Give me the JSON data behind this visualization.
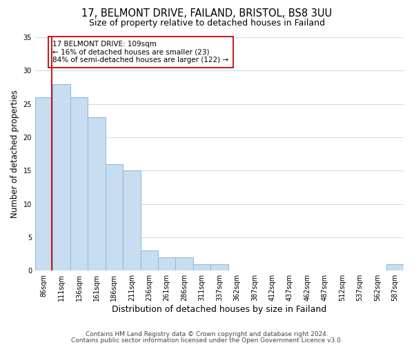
{
  "title": "17, BELMONT DRIVE, FAILAND, BRISTOL, BS8 3UU",
  "subtitle": "Size of property relative to detached houses in Failand",
  "xlabel": "Distribution of detached houses by size in Failand",
  "ylabel": "Number of detached properties",
  "bin_labels": [
    "86sqm",
    "111sqm",
    "136sqm",
    "161sqm",
    "186sqm",
    "211sqm",
    "236sqm",
    "261sqm",
    "286sqm",
    "311sqm",
    "337sqm",
    "362sqm",
    "387sqm",
    "412sqm",
    "437sqm",
    "462sqm",
    "487sqm",
    "512sqm",
    "537sqm",
    "562sqm",
    "587sqm"
  ],
  "bar_values": [
    26,
    28,
    26,
    23,
    16,
    15,
    3,
    2,
    2,
    1,
    1,
    0,
    0,
    0,
    0,
    0,
    0,
    0,
    0,
    0,
    1
  ],
  "bar_color": "#c8ddf0",
  "bar_edge_color": "#8ab8d8",
  "reference_line_color": "#cc0000",
  "reference_line_x": 0.94,
  "ylim": [
    0,
    35
  ],
  "yticks": [
    0,
    5,
    10,
    15,
    20,
    25,
    30,
    35
  ],
  "annotation_text": "17 BELMONT DRIVE: 109sqm\n← 16% of detached houses are smaller (23)\n84% of semi-detached houses are larger (122) →",
  "annotation_box_edge_color": "#cc0000",
  "footer_line1": "Contains HM Land Registry data © Crown copyright and database right 2024.",
  "footer_line2": "Contains public sector information licensed under the Open Government Licence v3.0.",
  "bg_color": "#ffffff",
  "grid_color": "#ccdded",
  "title_fontsize": 10.5,
  "subtitle_fontsize": 9,
  "xlabel_fontsize": 9,
  "ylabel_fontsize": 8.5,
  "tick_fontsize": 7,
  "annotation_fontsize": 7.5,
  "footer_fontsize": 6.5
}
